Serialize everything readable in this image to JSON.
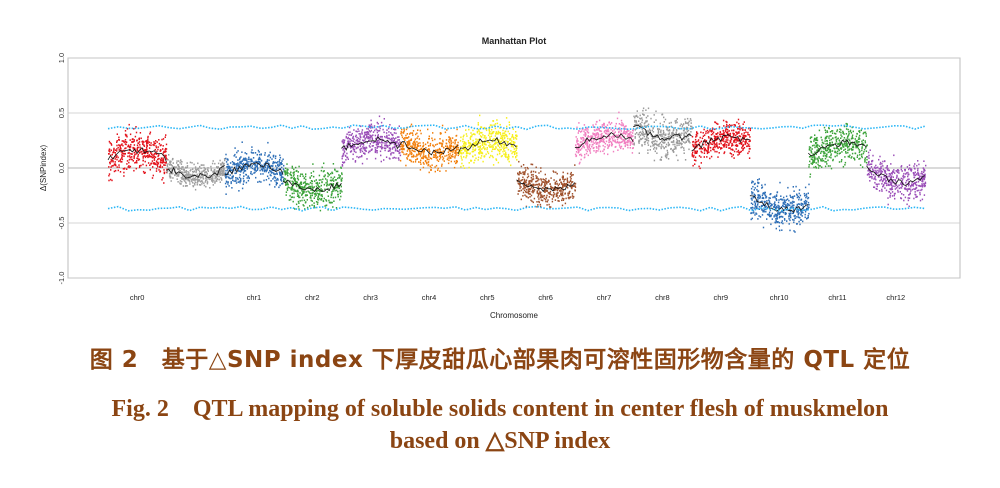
{
  "chart_data": {
    "type": "scatter",
    "title": "Manhattan Plot",
    "xlabel": "Chromosome",
    "ylabel": "Δ(SNPindex)",
    "ylim": [
      -1.0,
      1.0
    ],
    "yticks": [
      "-1.0",
      "-0.5",
      "0.0",
      "0.5",
      "1.0"
    ],
    "grid": true,
    "threshold_upper": 0.37,
    "threshold_lower": -0.37,
    "threshold_color": "#29b6f6",
    "chromosomes": [
      {
        "name": "chr0",
        "color": "#e3121b",
        "mean": 0.08,
        "spread": 0.33
      },
      {
        "name": "",
        "color": "#9e9e9e",
        "mean": 0.0,
        "spread": 0.18
      },
      {
        "name": "chr1",
        "color": "#2e6fb7",
        "mean": -0.05,
        "spread": 0.28
      },
      {
        "name": "chr2",
        "color": "#3ca33a",
        "mean": -0.12,
        "spread": 0.3
      },
      {
        "name": "chr3",
        "color": "#9b4fb8",
        "mean": 0.18,
        "spread": 0.28
      },
      {
        "name": "chr4",
        "color": "#f27f0c",
        "mean": 0.22,
        "spread": 0.3
      },
      {
        "name": "chr5",
        "color": "#f7ef1b",
        "mean": 0.17,
        "spread": 0.3
      },
      {
        "name": "chr6",
        "color": "#a0522d",
        "mean": -0.12,
        "spread": 0.28
      },
      {
        "name": "chr7",
        "color": "#f17fc0",
        "mean": 0.22,
        "spread": 0.25
      },
      {
        "name": "chr8",
        "color": "#9b9b9b",
        "mean": 0.35,
        "spread": 0.33
      },
      {
        "name": "chr9",
        "color": "#e3121b",
        "mean": 0.2,
        "spread": 0.28
      },
      {
        "name": "chr10",
        "color": "#2e6fb7",
        "mean": -0.3,
        "spread": 0.32
      },
      {
        "name": "chr11",
        "color": "#3ca33a",
        "mean": 0.15,
        "spread": 0.3
      },
      {
        "name": "chr12",
        "color": "#9b4fb8",
        "mean": -0.05,
        "spread": 0.3
      }
    ]
  },
  "caption": {
    "zh": "图 2　基于△SNP index 下厚皮甜瓜心部果肉可溶性固形物含量的 QTL 定位",
    "en_line1": "Fig. 2　QTL mapping of soluble solids content in center flesh of muskmelon",
    "en_line2": "based on △SNP index"
  }
}
